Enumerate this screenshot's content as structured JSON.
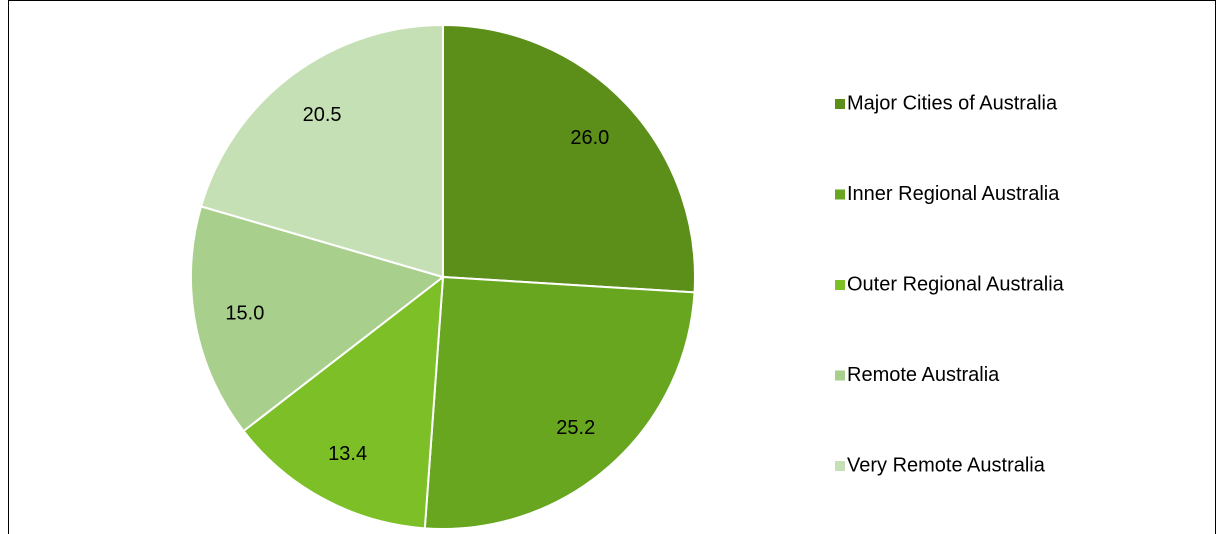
{
  "chart_data": {
    "type": "pie",
    "categories": [
      "Major Cities of Australia",
      "Inner Regional Australia",
      "Outer Regional Australia",
      "Remote Australia",
      "Very Remote Australia"
    ],
    "values": [
      26.0,
      25.2,
      13.4,
      15.0,
      20.5
    ],
    "value_labels": [
      "26.0",
      "25.2",
      "13.4",
      "15.0",
      "20.5"
    ],
    "colors": [
      "#5b8f1a",
      "#67a61e",
      "#7cbf27",
      "#a8cf8b",
      "#c6e0b5"
    ],
    "legend": "right"
  }
}
